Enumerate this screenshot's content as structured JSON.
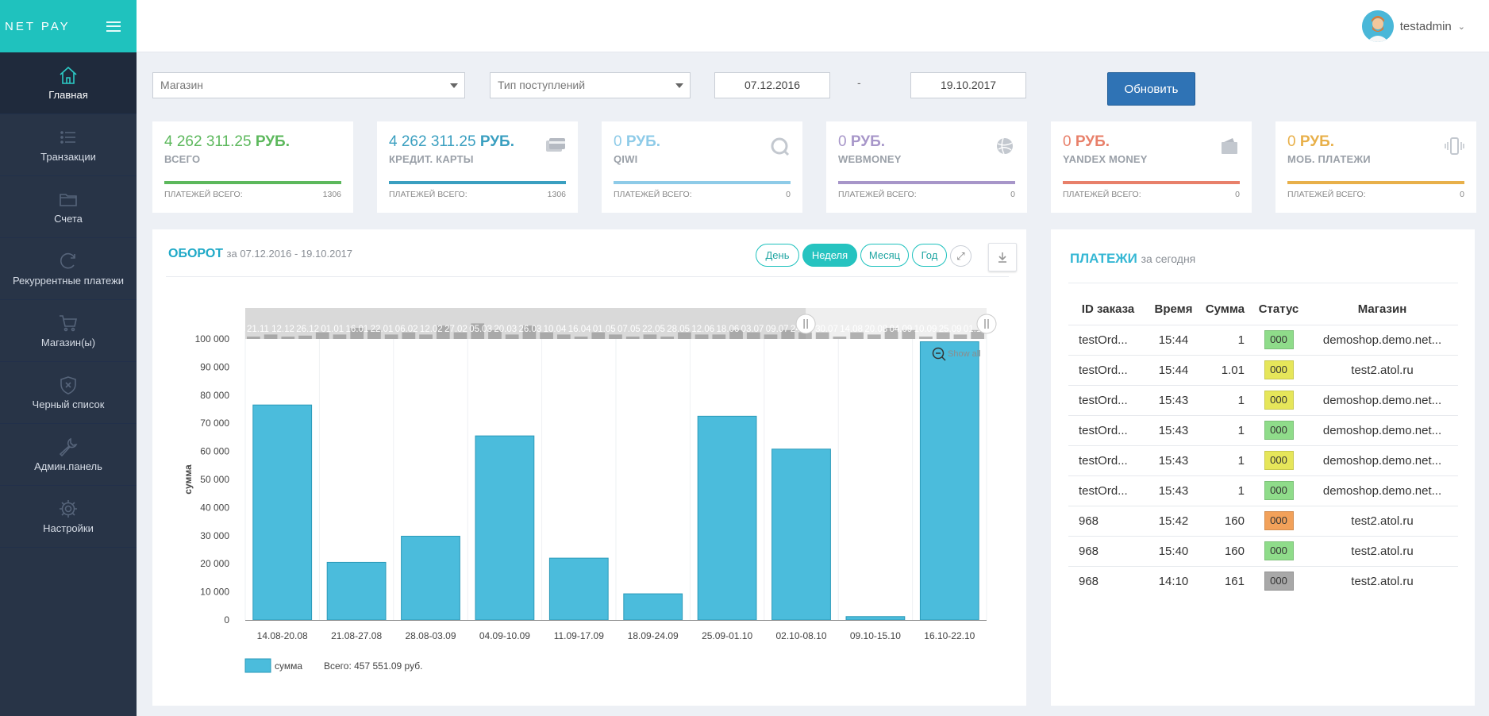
{
  "brand": "NET PAY",
  "user": {
    "name": "testadmin"
  },
  "sidebar": {
    "items": [
      {
        "label": "Главная",
        "icon": "home-icon",
        "active": true
      },
      {
        "label": "Транзакции",
        "icon": "list-icon"
      },
      {
        "label": "Счета",
        "icon": "folder-icon"
      },
      {
        "label": "Рекуррентные платежи",
        "icon": "recurring-icon"
      },
      {
        "label": "Магазин(ы)",
        "icon": "cart-icon"
      },
      {
        "label": "Черный список",
        "icon": "shield-icon"
      },
      {
        "label": "Админ.панель",
        "icon": "wrench-icon"
      },
      {
        "label": "Настройки",
        "icon": "gear-icon"
      }
    ]
  },
  "filters": {
    "shop_placeholder": "Магазин",
    "type_placeholder": "Тип поступлений",
    "date_from": "07.12.2016",
    "date_sep": "-",
    "date_to": "19.10.2017",
    "refresh_label": "Обновить"
  },
  "cards": [
    {
      "amount": "4 262 311.25",
      "currency": "РУБ.",
      "label": "ВСЕГО",
      "foot_label": "ПЛАТЕЖЕЙ ВСЕГО:",
      "count": "1306",
      "color": "#5cb85c",
      "icon": ""
    },
    {
      "amount": "4 262 311.25",
      "currency": "РУБ.",
      "label": "КРЕДИТ. КАРТЫ",
      "foot_label": "ПЛАТЕЖЕЙ ВСЕГО:",
      "count": "1306",
      "color": "#3a9fc0",
      "icon": "credit-card-icon"
    },
    {
      "amount": "0",
      "currency": "РУБ.",
      "label": "QIWI",
      "foot_label": "ПЛАТЕЖЕЙ ВСЕГО:",
      "count": "0",
      "color": "#8ecbe8",
      "icon": "qiwi-icon"
    },
    {
      "amount": "0",
      "currency": "РУБ.",
      "label": "WEBMONEY",
      "foot_label": "ПЛАТЕЖЕЙ ВСЕГО:",
      "count": "0",
      "color": "#a796c9",
      "icon": "globe-icon"
    },
    {
      "amount": "0",
      "currency": "РУБ.",
      "label": "YANDEX MONEY",
      "foot_label": "ПЛАТЕЖЕЙ ВСЕГО:",
      "count": "0",
      "color": "#e8806a",
      "icon": "wallet-icon"
    },
    {
      "amount": "0",
      "currency": "РУБ.",
      "label": "МОБ. ПЛАТЕЖИ",
      "foot_label": "ПЛАТЕЖЕЙ ВСЕГО:",
      "count": "0",
      "color": "#e8b04a",
      "icon": "phone-vibrate-icon"
    }
  ],
  "chart_panel": {
    "title": "ОБОРОТ",
    "period": "за 07.12.2016 - 19.10.2017",
    "buttons": [
      "День",
      "Неделя",
      "Месяц",
      "Год"
    ],
    "active_button": "Неделя",
    "show_all": "Show all"
  },
  "chart_data": {
    "type": "bar",
    "categories": [
      "14.08-20.08",
      "21.08-27.08",
      "28.08-03.09",
      "04.09-10.09",
      "11.09-17.09",
      "18.09-24.09",
      "25.09-01.10",
      "02.10-08.10",
      "09.10-15.10",
      "16.10-22.10"
    ],
    "series": [
      {
        "name": "сумма",
        "values": [
          76500,
          20500,
          29800,
          65500,
          22000,
          9300,
          72500,
          60800,
          1200,
          99000
        ],
        "color": "#4bbcdc"
      }
    ],
    "ylabel": "сумма",
    "ylim": [
      0,
      100000
    ],
    "yticks": [
      "0",
      "10 000",
      "20 000",
      "30 000",
      "40 000",
      "50 000",
      "60 000",
      "70 000",
      "80 000",
      "90 000",
      "100 000"
    ],
    "legend": "bottom-left",
    "total": "Всего: 457 551.09 руб.",
    "navigator_labels": [
      "21.11",
      "12.12",
      "26.12",
      "01.01",
      "16.01",
      "22.01",
      "06.02",
      "12.02",
      "27.02",
      "05.03",
      "20.03",
      "26.03",
      "10.04",
      "16.04",
      "01.05",
      "07.05",
      "22.05",
      "28.05",
      "12.06",
      "18.06",
      "03.07",
      "09.07",
      "24.07",
      "30.07",
      "14.08",
      "20.08",
      "04.09",
      "10.09",
      "25.09",
      "01.10"
    ]
  },
  "payments": {
    "title": "ПЛАТЕЖИ",
    "subtitle": "за сегодня",
    "columns": [
      "ID заказа",
      "Время",
      "Сумма",
      "Статус",
      "Магазин"
    ],
    "rows": [
      {
        "id": "testOrd...",
        "time": "15:44",
        "sum": "1",
        "status": "000",
        "status_color": "#8fdc8a",
        "shop": "demoshop.demo.net..."
      },
      {
        "id": "testOrd...",
        "time": "15:44",
        "sum": "1.01",
        "status": "000",
        "status_color": "#e6e65a",
        "shop": "test2.atol.ru"
      },
      {
        "id": "testOrd...",
        "time": "15:43",
        "sum": "1",
        "status": "000",
        "status_color": "#e6e65a",
        "shop": "demoshop.demo.net..."
      },
      {
        "id": "testOrd...",
        "time": "15:43",
        "sum": "1",
        "status": "000",
        "status_color": "#8fdc8a",
        "shop": "demoshop.demo.net..."
      },
      {
        "id": "testOrd...",
        "time": "15:43",
        "sum": "1",
        "status": "000",
        "status_color": "#e6e65a",
        "shop": "demoshop.demo.net..."
      },
      {
        "id": "testOrd...",
        "time": "15:43",
        "sum": "1",
        "status": "000",
        "status_color": "#8fdc8a",
        "shop": "demoshop.demo.net..."
      },
      {
        "id": "968",
        "time": "15:42",
        "sum": "160",
        "status": "000",
        "status_color": "#f2a15a",
        "shop": "test2.atol.ru"
      },
      {
        "id": "968",
        "time": "15:40",
        "sum": "160",
        "status": "000",
        "status_color": "#8fdc8a",
        "shop": "test2.atol.ru"
      },
      {
        "id": "968",
        "time": "14:10",
        "sum": "161",
        "status": "000",
        "status_color": "#a8a8a8",
        "shop": "test2.atol.ru"
      }
    ]
  }
}
